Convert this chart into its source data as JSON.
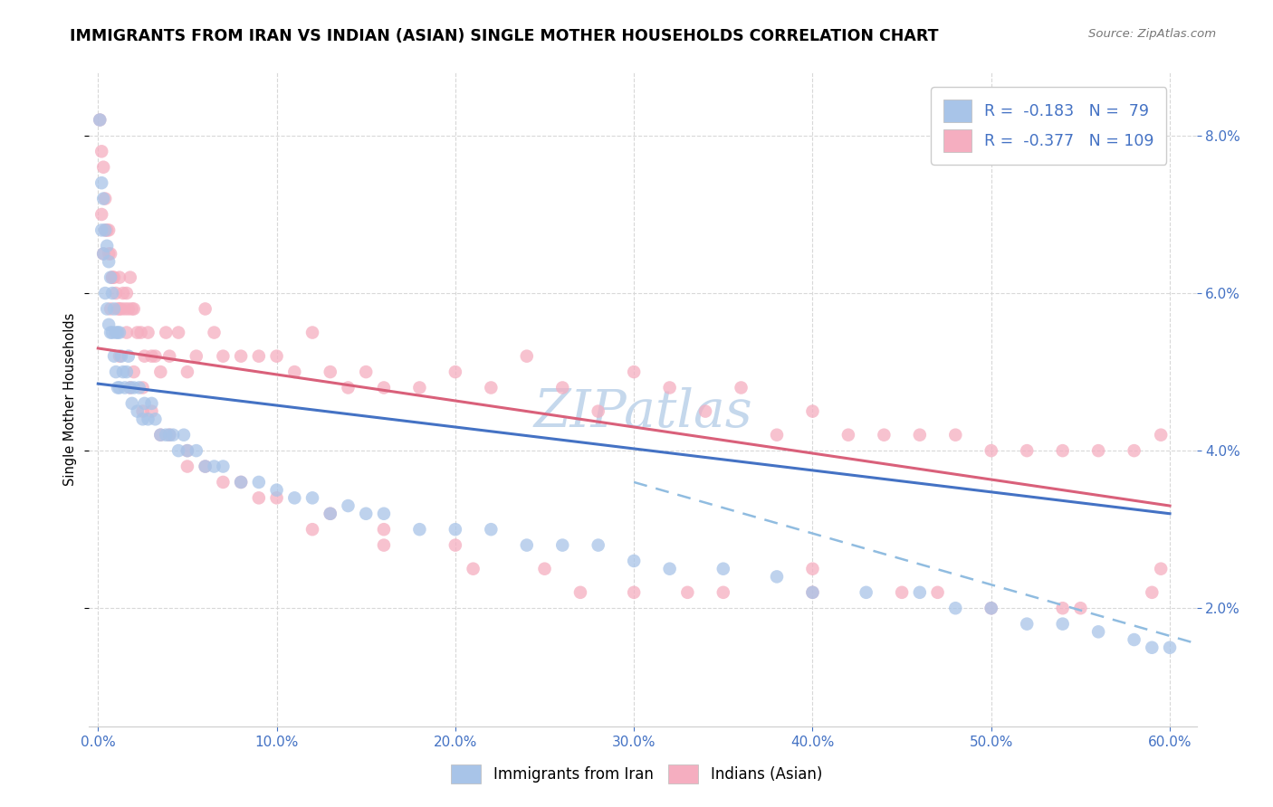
{
  "title": "IMMIGRANTS FROM IRAN VS INDIAN (ASIAN) SINGLE MOTHER HOUSEHOLDS CORRELATION CHART",
  "source": "Source: ZipAtlas.com",
  "xlabel_vals": [
    0.0,
    0.1,
    0.2,
    0.3,
    0.4,
    0.5,
    0.6
  ],
  "ylabel_vals": [
    0.02,
    0.04,
    0.06,
    0.08
  ],
  "xlim": [
    -0.005,
    0.615
  ],
  "ylim": [
    0.005,
    0.088
  ],
  "ylabel": "Single Mother Households",
  "iran_color": "#a8c4e8",
  "india_color": "#f5aec0",
  "iran_R": -0.183,
  "iran_N": 79,
  "india_R": -0.377,
  "india_N": 109,
  "iran_scatter_x": [
    0.001,
    0.002,
    0.002,
    0.003,
    0.003,
    0.004,
    0.004,
    0.005,
    0.005,
    0.006,
    0.006,
    0.007,
    0.007,
    0.008,
    0.008,
    0.009,
    0.009,
    0.01,
    0.01,
    0.011,
    0.011,
    0.012,
    0.012,
    0.013,
    0.014,
    0.015,
    0.016,
    0.017,
    0.018,
    0.019,
    0.02,
    0.022,
    0.023,
    0.025,
    0.026,
    0.028,
    0.03,
    0.032,
    0.035,
    0.038,
    0.04,
    0.042,
    0.045,
    0.048,
    0.05,
    0.055,
    0.06,
    0.065,
    0.07,
    0.08,
    0.09,
    0.1,
    0.11,
    0.12,
    0.13,
    0.14,
    0.15,
    0.16,
    0.18,
    0.2,
    0.22,
    0.24,
    0.26,
    0.28,
    0.3,
    0.32,
    0.35,
    0.38,
    0.4,
    0.43,
    0.46,
    0.48,
    0.5,
    0.52,
    0.54,
    0.56,
    0.58,
    0.59,
    0.6
  ],
  "iran_scatter_y": [
    0.082,
    0.074,
    0.068,
    0.072,
    0.065,
    0.068,
    0.06,
    0.066,
    0.058,
    0.064,
    0.056,
    0.062,
    0.055,
    0.06,
    0.055,
    0.058,
    0.052,
    0.055,
    0.05,
    0.055,
    0.048,
    0.055,
    0.048,
    0.052,
    0.05,
    0.048,
    0.05,
    0.052,
    0.048,
    0.046,
    0.048,
    0.045,
    0.048,
    0.044,
    0.046,
    0.044,
    0.046,
    0.044,
    0.042,
    0.042,
    0.042,
    0.042,
    0.04,
    0.042,
    0.04,
    0.04,
    0.038,
    0.038,
    0.038,
    0.036,
    0.036,
    0.035,
    0.034,
    0.034,
    0.032,
    0.033,
    0.032,
    0.032,
    0.03,
    0.03,
    0.03,
    0.028,
    0.028,
    0.028,
    0.026,
    0.025,
    0.025,
    0.024,
    0.022,
    0.022,
    0.022,
    0.02,
    0.02,
    0.018,
    0.018,
    0.017,
    0.016,
    0.015,
    0.015
  ],
  "india_scatter_x": [
    0.001,
    0.002,
    0.003,
    0.004,
    0.005,
    0.006,
    0.007,
    0.008,
    0.009,
    0.01,
    0.011,
    0.012,
    0.013,
    0.014,
    0.015,
    0.016,
    0.017,
    0.018,
    0.019,
    0.02,
    0.022,
    0.024,
    0.026,
    0.028,
    0.03,
    0.032,
    0.035,
    0.038,
    0.04,
    0.045,
    0.05,
    0.055,
    0.06,
    0.065,
    0.07,
    0.08,
    0.09,
    0.1,
    0.11,
    0.12,
    0.13,
    0.14,
    0.15,
    0.16,
    0.18,
    0.2,
    0.22,
    0.24,
    0.26,
    0.28,
    0.3,
    0.32,
    0.34,
    0.36,
    0.38,
    0.4,
    0.42,
    0.44,
    0.46,
    0.48,
    0.5,
    0.52,
    0.54,
    0.56,
    0.58,
    0.595,
    0.002,
    0.004,
    0.006,
    0.008,
    0.012,
    0.016,
    0.02,
    0.025,
    0.03,
    0.04,
    0.05,
    0.06,
    0.08,
    0.1,
    0.13,
    0.16,
    0.2,
    0.25,
    0.3,
    0.35,
    0.4,
    0.45,
    0.5,
    0.55,
    0.59,
    0.003,
    0.007,
    0.012,
    0.018,
    0.025,
    0.035,
    0.05,
    0.07,
    0.09,
    0.12,
    0.16,
    0.21,
    0.27,
    0.33,
    0.4,
    0.47,
    0.54,
    0.595
  ],
  "india_scatter_y": [
    0.082,
    0.078,
    0.076,
    0.072,
    0.068,
    0.068,
    0.065,
    0.062,
    0.062,
    0.06,
    0.058,
    0.062,
    0.058,
    0.06,
    0.058,
    0.06,
    0.058,
    0.062,
    0.058,
    0.058,
    0.055,
    0.055,
    0.052,
    0.055,
    0.052,
    0.052,
    0.05,
    0.055,
    0.052,
    0.055,
    0.05,
    0.052,
    0.058,
    0.055,
    0.052,
    0.052,
    0.052,
    0.052,
    0.05,
    0.055,
    0.05,
    0.048,
    0.05,
    0.048,
    0.048,
    0.05,
    0.048,
    0.052,
    0.048,
    0.045,
    0.05,
    0.048,
    0.045,
    0.048,
    0.042,
    0.045,
    0.042,
    0.042,
    0.042,
    0.042,
    0.04,
    0.04,
    0.04,
    0.04,
    0.04,
    0.042,
    0.07,
    0.068,
    0.065,
    0.062,
    0.058,
    0.055,
    0.05,
    0.048,
    0.045,
    0.042,
    0.04,
    0.038,
    0.036,
    0.034,
    0.032,
    0.03,
    0.028,
    0.025,
    0.022,
    0.022,
    0.022,
    0.022,
    0.02,
    0.02,
    0.022,
    0.065,
    0.058,
    0.052,
    0.048,
    0.045,
    0.042,
    0.038,
    0.036,
    0.034,
    0.03,
    0.028,
    0.025,
    0.022,
    0.022,
    0.025,
    0.022,
    0.02,
    0.025
  ],
  "iran_line_x": [
    0.0,
    0.6
  ],
  "iran_line_y": [
    0.0485,
    0.032
  ],
  "iran_line_color": "#4472c4",
  "india_line_x": [
    0.0,
    0.6
  ],
  "india_line_y": [
    0.053,
    0.033
  ],
  "india_line_color": "#d9607a",
  "dashed_line_x": [
    0.3,
    0.615
  ],
  "dashed_line_y": [
    0.036,
    0.0155
  ],
  "dashed_line_color": "#90bce0",
  "watermark": "ZIPatlas",
  "watermark_color": "#c5d8ec",
  "legend_iran_label": "Immigrants from Iran",
  "legend_india_label": "Indians (Asian)",
  "background_color": "#ffffff",
  "grid_color": "#d8d8d8",
  "title_fontsize": 12.5,
  "axis_label_color": "#4472c4"
}
